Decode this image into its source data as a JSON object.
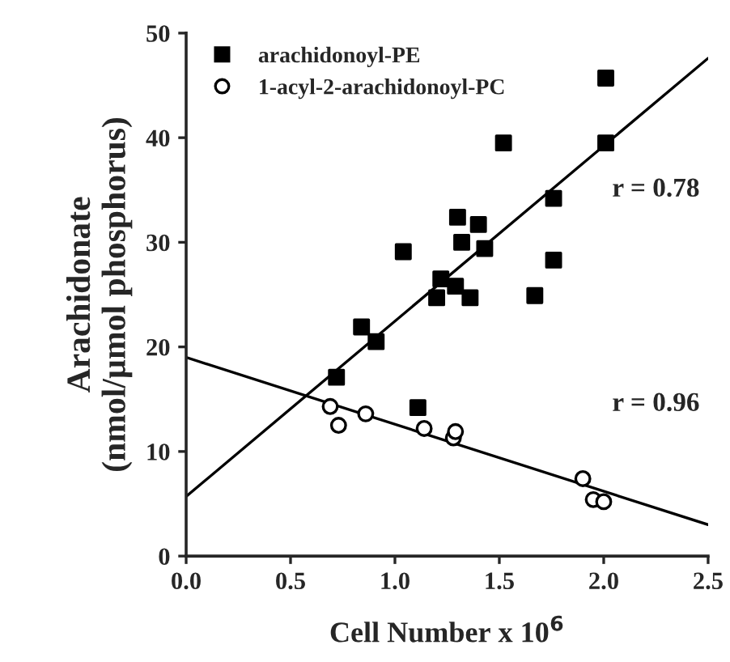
{
  "chart_data": {
    "type": "scatter",
    "xlabel": "Cell Number x 10$^{6}$",
    "ylabel": "Arachidonate\n(nmol/µmol phosphorus)",
    "xlim": [
      0,
      2.5
    ],
    "xticks": [
      {
        "value": 0,
        "label": "0.0"
      },
      {
        "value": 0.5,
        "label": "0.5"
      },
      {
        "value": 1,
        "label": "1.0"
      },
      {
        "value": 1.5,
        "label": "1.5"
      },
      {
        "value": 2,
        "label": "2.0"
      },
      {
        "value": 2.5,
        "label": "2.5"
      }
    ],
    "ylim": [
      0,
      50
    ],
    "yticks": [
      0,
      10,
      20,
      30,
      40,
      50
    ],
    "grid": false,
    "legend": "top left",
    "series": [
      {
        "name": "arachidonoyl-PE",
        "color": "#000000",
        "marker": "square",
        "x": [
          2.01,
          2.01,
          1.52,
          1.76,
          1.3,
          1.4,
          1.32,
          1.43,
          1.04,
          1.76,
          1.22,
          1.29,
          1.2,
          1.36,
          1.67,
          0.84,
          0.91,
          0.72,
          1.11
        ],
        "values": [
          45.7,
          39.5,
          39.5,
          34.2,
          32.4,
          31.7,
          30.0,
          29.4,
          29.1,
          28.3,
          26.5,
          25.8,
          24.7,
          24.7,
          24.9,
          21.9,
          20.5,
          17.1,
          14.2
        ]
      },
      {
        "name": "1-acyl-2-arachidonoyl-PC",
        "color": "#ffffff",
        "marker": "circle",
        "x": [
          0.69,
          0.73,
          0.86,
          1.14,
          1.28,
          1.29,
          1.9,
          1.95,
          2.0
        ],
        "values": [
          14.3,
          12.5,
          13.6,
          12.2,
          11.3,
          11.9,
          7.4,
          5.4,
          5.2
        ]
      },
      {
        "type": "line",
        "color": "#000000",
        "x": [
          0,
          2.5
        ],
        "values": [
          5.7,
          47.6
        ]
      },
      {
        "type": "line",
        "color": "#000000",
        "x": [
          0,
          2.5
        ],
        "values": [
          19.0,
          3.0
        ]
      }
    ],
    "annotations": [
      "r = 0.78",
      "r = 0.96"
    ]
  }
}
